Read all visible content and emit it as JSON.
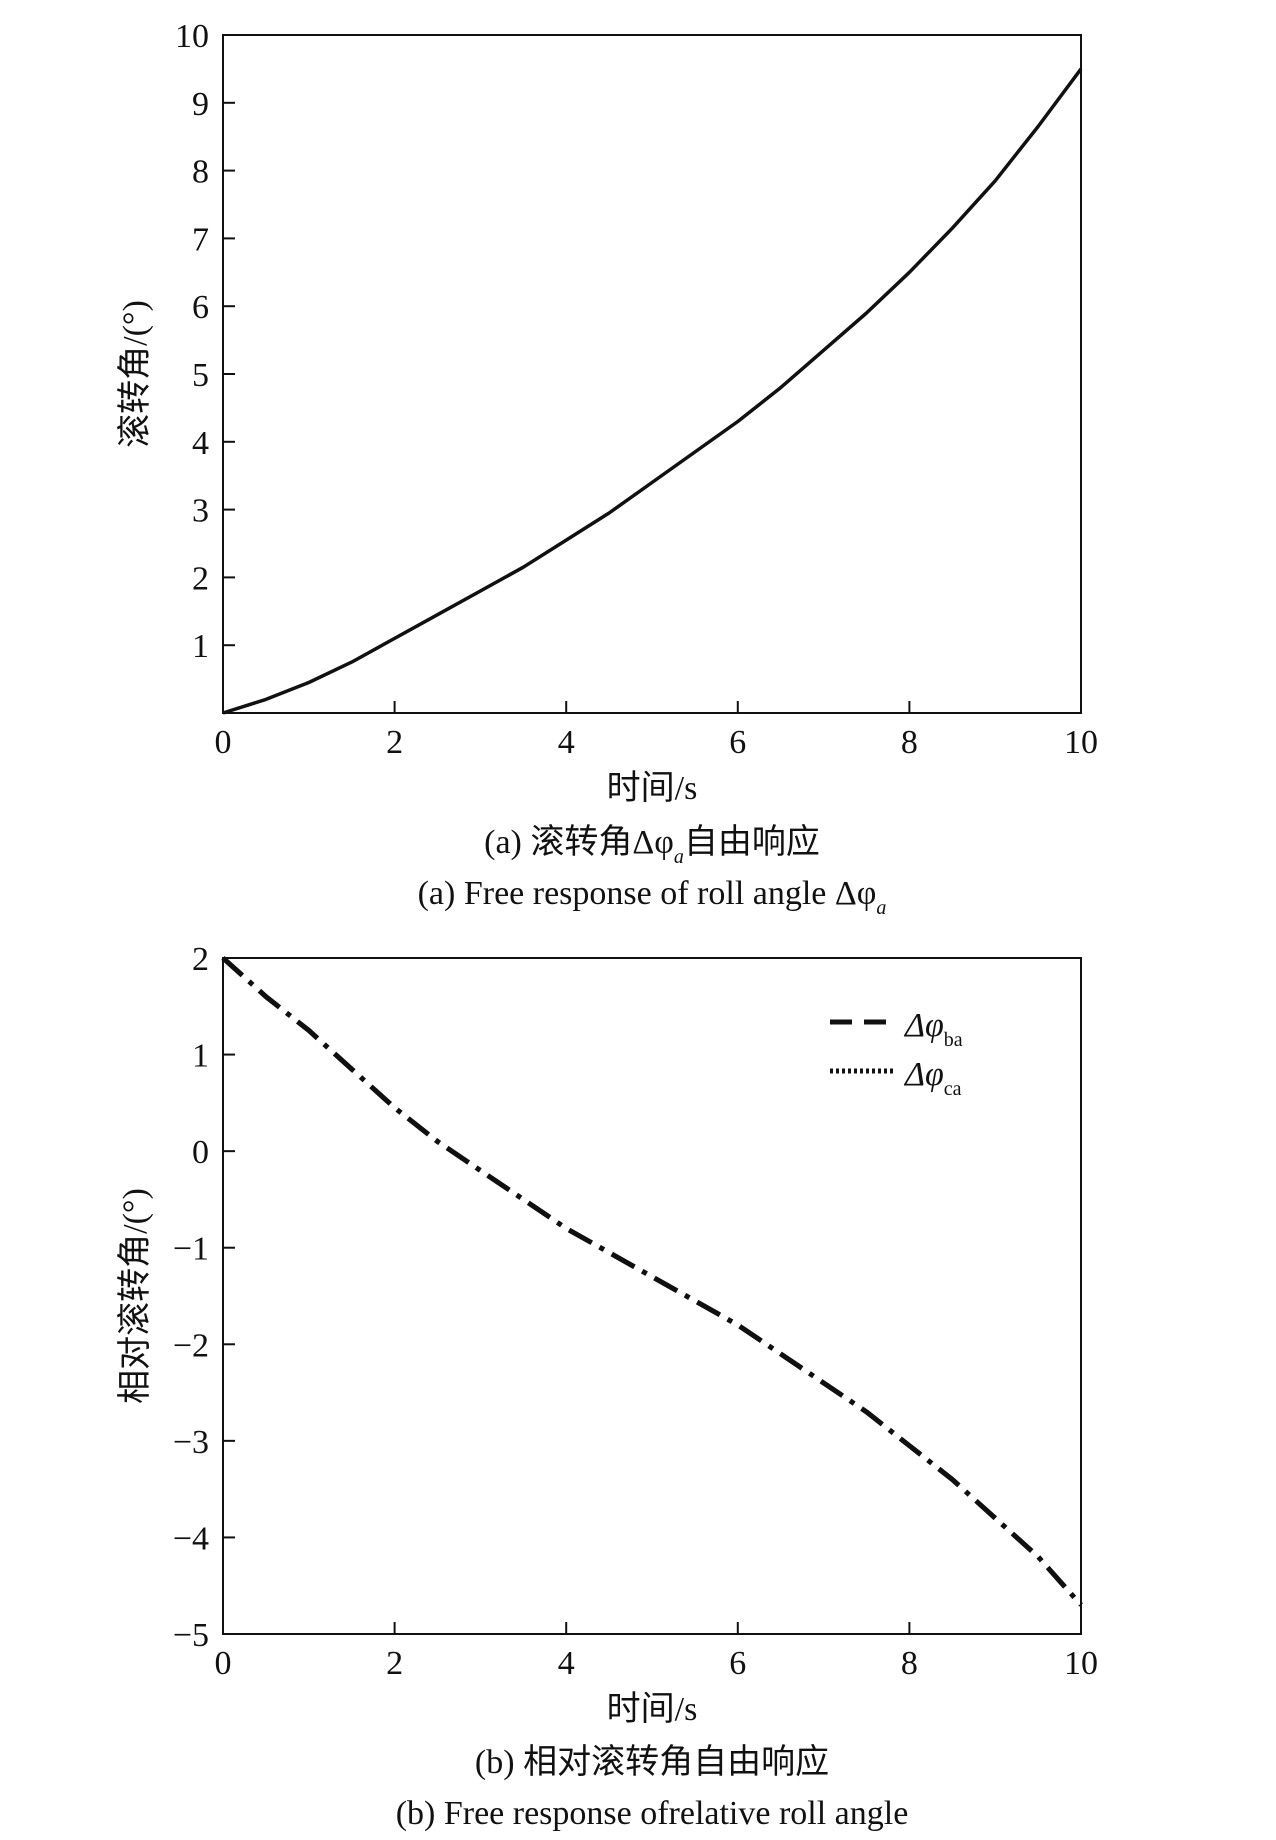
{
  "chart_data": [
    {
      "type": "line",
      "xlabel": "时间/s",
      "ylabel": "滚转角/(°)",
      "xlim": [
        0,
        10
      ],
      "ylim": [
        0,
        10
      ],
      "xticks": [
        "0",
        "2",
        "4",
        "6",
        "8",
        "10"
      ],
      "yticks": [
        "1",
        "2",
        "3",
        "4",
        "5",
        "6",
        "7",
        "8",
        "9",
        "10"
      ],
      "caption_cn": "(a) 滚转角Δφ",
      "caption_cn_sub": "a",
      "caption_cn_tail": "自由响应",
      "caption_en": "(a) Free response of roll angle Δφ",
      "caption_en_sub": "a",
      "grid": false,
      "series": [
        {
          "x": [
            0,
            0.5,
            1,
            1.5,
            2,
            2.5,
            3,
            3.5,
            4,
            4.5,
            5,
            5.5,
            6,
            6.5,
            7,
            7.5,
            8,
            8.5,
            9,
            9.5,
            10
          ],
          "y": [
            0,
            0.2,
            0.45,
            0.75,
            1.1,
            1.45,
            1.8,
            2.15,
            2.55,
            2.95,
            3.4,
            3.85,
            4.3,
            4.8,
            5.35,
            5.9,
            6.5,
            7.15,
            7.85,
            8.65,
            9.5
          ],
          "style": "solid"
        }
      ]
    },
    {
      "type": "line",
      "xlabel": "时间/s",
      "ylabel": "相对滚转角/(°)",
      "xlim": [
        0,
        10
      ],
      "ylim": [
        -5,
        2
      ],
      "xticks": [
        "0",
        "2",
        "4",
        "6",
        "8",
        "10"
      ],
      "yticks": [
        "−5",
        "−4",
        "−3",
        "−2",
        "−1",
        "0",
        "1",
        "2"
      ],
      "caption_cn": "(b) 相对滚转角自由响应",
      "caption_en": "(b) Free response ofrelative roll angle",
      "grid": false,
      "legend_position": "top-right",
      "series": [
        {
          "name": "Δφ",
          "name_sub": "ba",
          "style": "dashed",
          "x": [
            0,
            0.5,
            1,
            1.5,
            2,
            2.5,
            3,
            3.5,
            4,
            4.5,
            5,
            5.5,
            6,
            6.5,
            7,
            7.5,
            8,
            8.5,
            9,
            9.5,
            10
          ],
          "y": [
            2,
            1.6,
            1.25,
            0.85,
            0.45,
            0.1,
            -0.2,
            -0.5,
            -0.8,
            -1.05,
            -1.3,
            -1.55,
            -1.8,
            -2.1,
            -2.4,
            -2.7,
            -3.05,
            -3.4,
            -3.8,
            -4.2,
            -4.7
          ]
        },
        {
          "name": "Δφ",
          "name_sub": "ca",
          "style": "dotted",
          "x": [
            0,
            0.5,
            1,
            1.5,
            2,
            2.5,
            3,
            3.5,
            4,
            4.5,
            5,
            5.5,
            6,
            6.5,
            7,
            7.5,
            8,
            8.5,
            9,
            9.5,
            10
          ],
          "y": [
            2,
            1.6,
            1.25,
            0.85,
            0.45,
            0.1,
            -0.2,
            -0.5,
            -0.8,
            -1.05,
            -1.3,
            -1.55,
            -1.8,
            -2.1,
            -2.4,
            -2.7,
            -3.05,
            -3.4,
            -3.8,
            -4.2,
            -4.7
          ]
        }
      ]
    }
  ]
}
